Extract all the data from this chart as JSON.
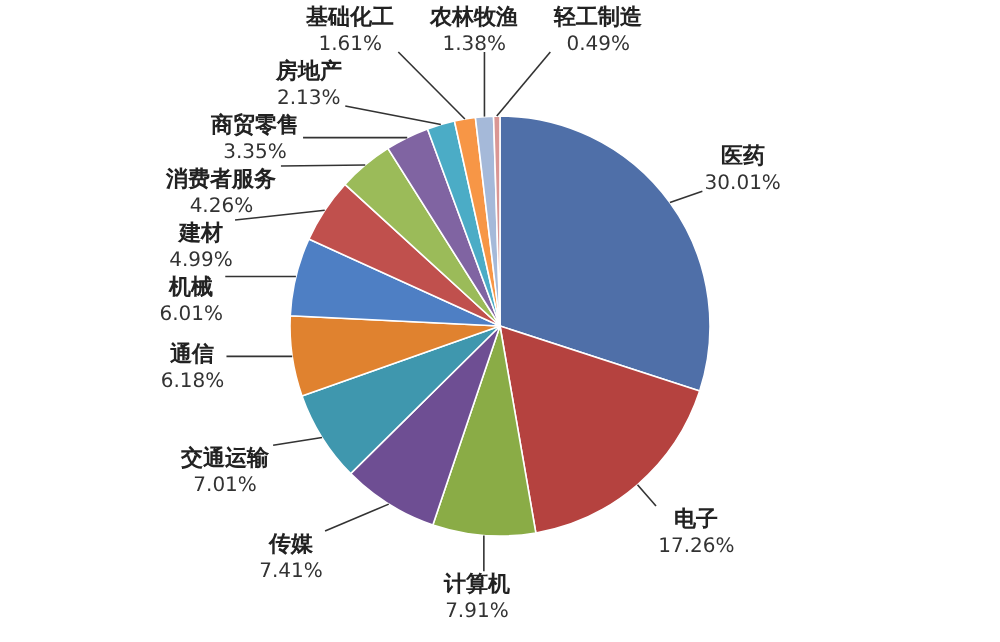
{
  "chart_data": {
    "type": "pie",
    "categories": [
      "医药",
      "电子",
      "计算机",
      "传媒",
      "交通运输",
      "通信",
      "机械",
      "建材",
      "消费者服务",
      "商贸零售",
      "房地产",
      "基础化工",
      "农林牧渔",
      "轻工制造"
    ],
    "values": [
      30.01,
      17.26,
      7.91,
      7.41,
      7.01,
      6.18,
      6.01,
      4.99,
      4.26,
      3.35,
      2.13,
      1.61,
      1.38,
      0.49
    ],
    "value_labels": [
      "30.01%",
      "17.26%",
      "7.91%",
      "7.41%",
      "7.01%",
      "6.18%",
      "6.01%",
      "4.99%",
      "4.26%",
      "3.35%",
      "2.13%",
      "1.61%",
      "1.38%",
      "0.49%"
    ],
    "colors": [
      "#4f6fa8",
      "#b5423f",
      "#8aac46",
      "#6e4e93",
      "#3f97ae",
      "#e0822f",
      "#4e7fc4",
      "#c0504d",
      "#9bbb59",
      "#8064a2",
      "#4bacc6",
      "#f79646",
      "#a5b9d9",
      "#d99694"
    ]
  }
}
